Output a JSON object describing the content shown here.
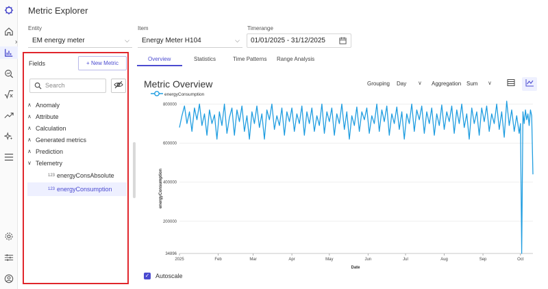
{
  "app": {
    "title": "Metric Explorer"
  },
  "rail": {
    "icons": [
      "logo-icon",
      "home-icon",
      "chart-icon",
      "search-chart-icon",
      "sqrt-icon",
      "trend-icon",
      "sparkle-icon",
      "menu-icon",
      "settings-icon",
      "sliders-icon",
      "user-icon"
    ]
  },
  "filters": {
    "entity": {
      "label": "Entity",
      "value": "EM energy meter"
    },
    "item": {
      "label": "Item",
      "value": "Energy Meter H104"
    },
    "timerange": {
      "label": "Timerange",
      "value": "01/01/2025 - 31/12/2025"
    }
  },
  "fields": {
    "title": "Fields",
    "new_metric": "+ New Metric",
    "search_placeholder": "Search",
    "groups": [
      "Anomaly",
      "Attribute",
      "Calculation",
      "Generated metrics",
      "Prediction",
      "Telemetry"
    ],
    "telemetry_items": [
      {
        "tag": "123",
        "label": "energyConsAbsolute"
      },
      {
        "tag": "123",
        "label": "energyConsumption"
      }
    ]
  },
  "tabs": [
    "Overview",
    "Statistics",
    "Time Patterns",
    "Range Analysis"
  ],
  "overview": {
    "title": "Metric Overview",
    "grouping_label": "Grouping",
    "grouping_value": "Day",
    "aggregation_label": "Aggregation",
    "aggregation_value": "Sum",
    "autoscale_label": "Autoscale"
  },
  "colors": {
    "accent": "#4a4ad0",
    "series": "#1f9de0",
    "highlight": "#e0252b"
  },
  "chart_data": {
    "type": "line",
    "legend": "energyConsumption",
    "xlabel": "Date",
    "ylabel": "energyConsumption",
    "x_ticks": [
      "2025",
      "Feb",
      "Mar",
      "Apr",
      "May",
      "Jun",
      "Jul",
      "Aug",
      "Sep",
      "Oct"
    ],
    "y_ticks": [
      "34896",
      "200000",
      "400000",
      "600000",
      "800000"
    ],
    "ylim": [
      34896,
      815000
    ],
    "x_start": "2025-01-01",
    "x_end": "2025-10-11",
    "series": [
      {
        "name": "energyConsumption",
        "points": [
          [
            "2025-01-01",
            680000
          ],
          [
            "2025-01-03",
            740000
          ],
          [
            "2025-01-05",
            790000
          ],
          [
            "2025-01-07",
            700000
          ],
          [
            "2025-01-09",
            760000
          ],
          [
            "2025-01-11",
            660000
          ],
          [
            "2025-01-13",
            780000
          ],
          [
            "2025-01-15",
            720000
          ],
          [
            "2025-01-17",
            800000
          ],
          [
            "2025-01-19",
            690000
          ],
          [
            "2025-01-21",
            750000
          ],
          [
            "2025-01-23",
            640000
          ],
          [
            "2025-01-25",
            770000
          ],
          [
            "2025-01-27",
            700000
          ],
          [
            "2025-01-29",
            745000
          ],
          [
            "2025-01-31",
            620000
          ],
          [
            "2025-02-02",
            760000
          ],
          [
            "2025-02-04",
            690000
          ],
          [
            "2025-02-06",
            800000
          ],
          [
            "2025-02-08",
            650000
          ],
          [
            "2025-02-10",
            730000
          ],
          [
            "2025-02-12",
            780000
          ],
          [
            "2025-02-14",
            640000
          ],
          [
            "2025-02-16",
            770000
          ],
          [
            "2025-02-18",
            710000
          ],
          [
            "2025-02-20",
            790000
          ],
          [
            "2025-02-22",
            660000
          ],
          [
            "2025-02-24",
            740000
          ],
          [
            "2025-02-26",
            620000
          ],
          [
            "2025-02-28",
            760000
          ],
          [
            "2025-03-02",
            700000
          ],
          [
            "2025-03-04",
            790000
          ],
          [
            "2025-03-06",
            680000
          ],
          [
            "2025-03-08",
            750000
          ],
          [
            "2025-03-10",
            620000
          ],
          [
            "2025-03-12",
            770000
          ],
          [
            "2025-03-14",
            720000
          ],
          [
            "2025-03-16",
            800000
          ],
          [
            "2025-03-18",
            670000
          ],
          [
            "2025-03-20",
            740000
          ],
          [
            "2025-03-22",
            690000
          ],
          [
            "2025-03-24",
            780000
          ],
          [
            "2025-03-26",
            640000
          ],
          [
            "2025-03-28",
            760000
          ],
          [
            "2025-03-30",
            710000
          ],
          [
            "2025-04-01",
            780000
          ],
          [
            "2025-04-03",
            660000
          ],
          [
            "2025-04-05",
            750000
          ],
          [
            "2025-04-07",
            700000
          ],
          [
            "2025-04-09",
            790000
          ],
          [
            "2025-04-11",
            640000
          ],
          [
            "2025-04-13",
            760000
          ],
          [
            "2025-04-15",
            700000
          ],
          [
            "2025-04-17",
            780000
          ],
          [
            "2025-04-19",
            660000
          ],
          [
            "2025-04-21",
            740000
          ],
          [
            "2025-04-23",
            690000
          ],
          [
            "2025-04-25",
            800000
          ],
          [
            "2025-04-27",
            650000
          ],
          [
            "2025-04-29",
            760000
          ],
          [
            "2025-05-01",
            710000
          ],
          [
            "2025-05-03",
            780000
          ],
          [
            "2025-05-05",
            640000
          ],
          [
            "2025-05-07",
            750000
          ],
          [
            "2025-05-09",
            700000
          ],
          [
            "2025-05-11",
            800000
          ],
          [
            "2025-05-13",
            670000
          ],
          [
            "2025-05-15",
            760000
          ],
          [
            "2025-05-17",
            620000
          ],
          [
            "2025-05-19",
            740000
          ],
          [
            "2025-05-21",
            690000
          ],
          [
            "2025-05-23",
            785000
          ],
          [
            "2025-05-25",
            660000
          ],
          [
            "2025-05-27",
            760000
          ],
          [
            "2025-05-29",
            720000
          ],
          [
            "2025-05-31",
            780000
          ],
          [
            "2025-06-02",
            650000
          ],
          [
            "2025-06-04",
            740000
          ],
          [
            "2025-06-06",
            700000
          ],
          [
            "2025-06-08",
            800000
          ],
          [
            "2025-06-10",
            660000
          ],
          [
            "2025-06-12",
            770000
          ],
          [
            "2025-06-14",
            710000
          ],
          [
            "2025-06-16",
            790000
          ],
          [
            "2025-06-18",
            640000
          ],
          [
            "2025-06-20",
            750000
          ],
          [
            "2025-06-22",
            700000
          ],
          [
            "2025-06-24",
            785000
          ],
          [
            "2025-06-26",
            670000
          ],
          [
            "2025-06-28",
            760000
          ],
          [
            "2025-06-30",
            620000
          ],
          [
            "2025-07-02",
            750000
          ],
          [
            "2025-07-04",
            700000
          ],
          [
            "2025-07-06",
            800000
          ],
          [
            "2025-07-08",
            660000
          ],
          [
            "2025-07-10",
            770000
          ],
          [
            "2025-07-12",
            720000
          ],
          [
            "2025-07-14",
            790000
          ],
          [
            "2025-07-16",
            650000
          ],
          [
            "2025-07-18",
            760000
          ],
          [
            "2025-07-20",
            700000
          ],
          [
            "2025-07-22",
            780000
          ],
          [
            "2025-07-24",
            640000
          ],
          [
            "2025-07-26",
            750000
          ],
          [
            "2025-07-28",
            690000
          ],
          [
            "2025-07-30",
            795000
          ],
          [
            "2025-08-01",
            670000
          ],
          [
            "2025-08-03",
            760000
          ],
          [
            "2025-08-05",
            710000
          ],
          [
            "2025-08-07",
            790000
          ],
          [
            "2025-08-09",
            650000
          ],
          [
            "2025-08-11",
            770000
          ],
          [
            "2025-08-13",
            700000
          ],
          [
            "2025-08-15",
            800000
          ],
          [
            "2025-08-17",
            680000
          ],
          [
            "2025-08-19",
            750000
          ],
          [
            "2025-08-21",
            620000
          ],
          [
            "2025-08-23",
            780000
          ],
          [
            "2025-08-25",
            700000
          ],
          [
            "2025-08-27",
            760000
          ],
          [
            "2025-08-29",
            640000
          ],
          [
            "2025-08-31",
            780000
          ],
          [
            "2025-09-02",
            710000
          ],
          [
            "2025-09-04",
            790000
          ],
          [
            "2025-09-06",
            660000
          ],
          [
            "2025-09-08",
            750000
          ],
          [
            "2025-09-10",
            700000
          ],
          [
            "2025-09-12",
            800000
          ],
          [
            "2025-09-14",
            670000
          ],
          [
            "2025-09-16",
            760000
          ],
          [
            "2025-09-18",
            630000
          ],
          [
            "2025-09-20",
            815000
          ],
          [
            "2025-09-22",
            690000
          ],
          [
            "2025-09-24",
            770000
          ],
          [
            "2025-09-26",
            660000
          ],
          [
            "2025-09-28",
            740000
          ],
          [
            "2025-09-30",
            650000
          ],
          [
            "2025-10-01",
            700000
          ],
          [
            "2025-10-02",
            34896
          ],
          [
            "2025-10-03",
            760000
          ],
          [
            "2025-10-04",
            700000
          ],
          [
            "2025-10-05",
            770000
          ],
          [
            "2025-10-06",
            720000
          ],
          [
            "2025-10-07",
            750000
          ],
          [
            "2025-10-08",
            690000
          ],
          [
            "2025-10-09",
            770000
          ],
          [
            "2025-10-10",
            740000
          ],
          [
            "2025-10-11",
            440000
          ]
        ]
      }
    ]
  }
}
